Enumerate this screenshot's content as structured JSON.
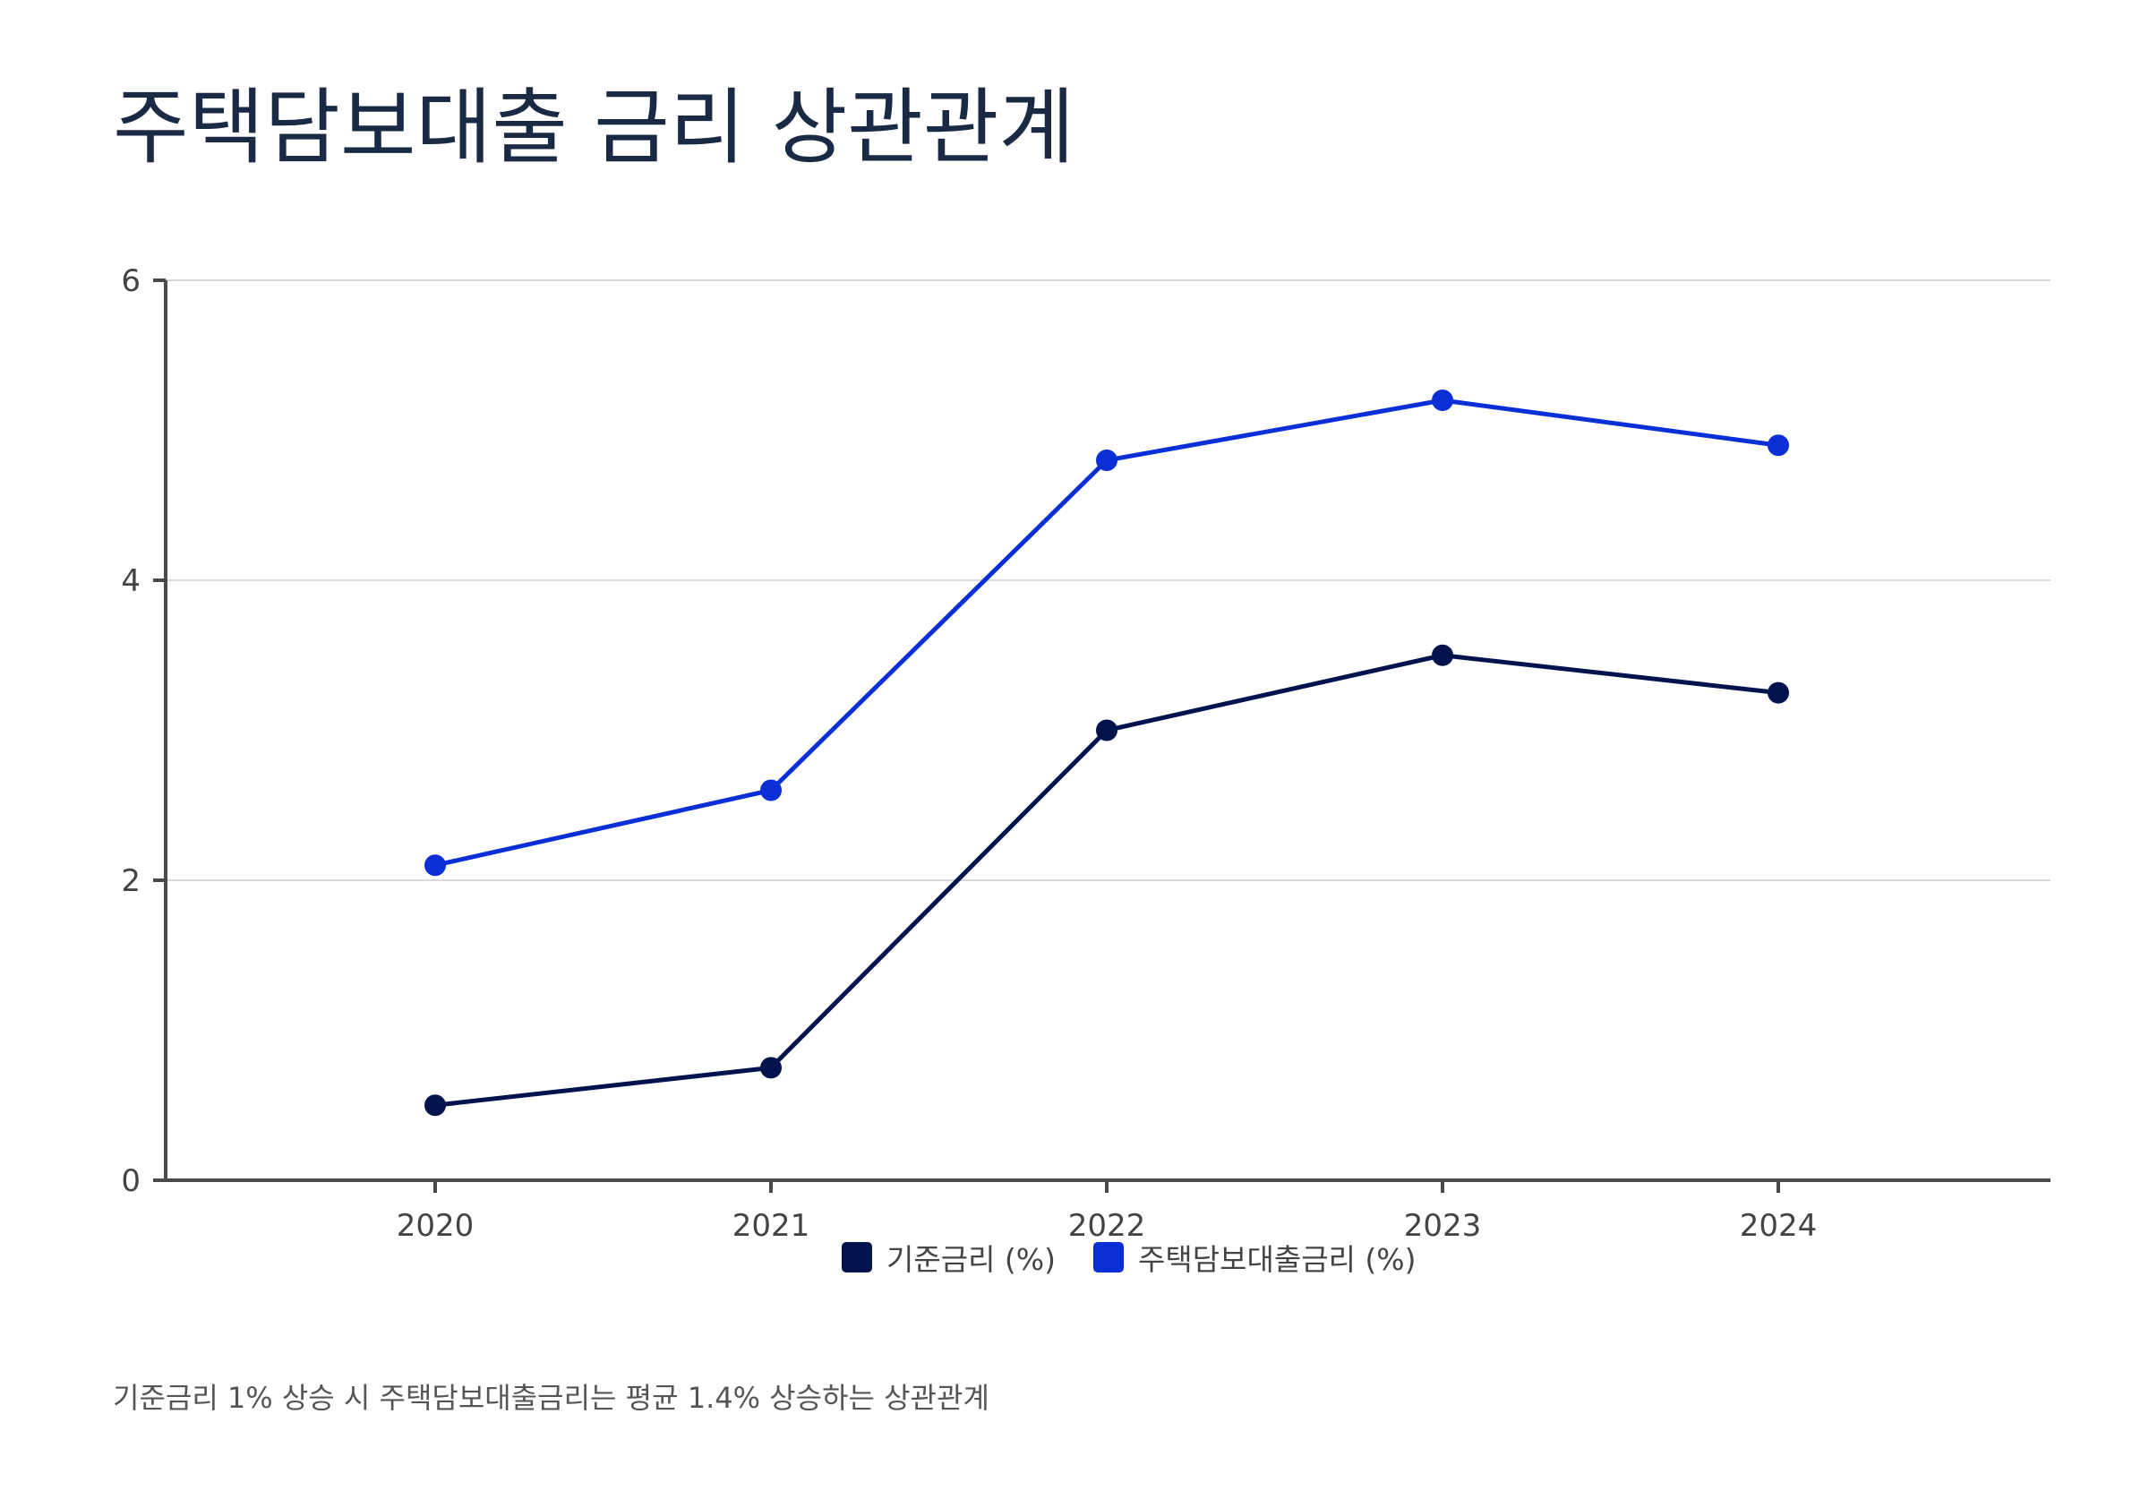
{
  "title": "주택담보대출 금리 상관관계",
  "footnote": "기준금리 1% 상승 시 주택담보대출금리는 평균 1.4% 상승하는 상관관계",
  "chart_data": {
    "type": "line",
    "x": [
      "2020",
      "2021",
      "2022",
      "2023",
      "2024"
    ],
    "ylim": [
      0,
      6
    ],
    "yticks": [
      0,
      2,
      4,
      6
    ],
    "grid": true,
    "legend_position": "bottom",
    "series": [
      {
        "name": "기준금리 (%)",
        "color": "#00134d",
        "values": [
          0.5,
          0.75,
          3.0,
          3.5,
          3.25
        ]
      },
      {
        "name": "주택담보대출금리 (%)",
        "color": "#0a2fd6",
        "values": [
          2.1,
          2.6,
          4.8,
          5.2,
          4.9
        ]
      }
    ]
  }
}
